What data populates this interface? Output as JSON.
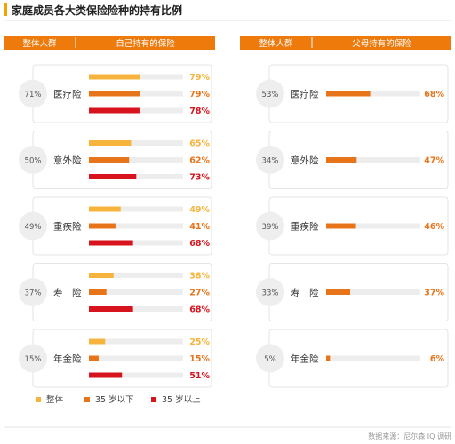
{
  "title": "家庭成员各大类保险险种的持有比例",
  "source": "数据来源：尼尔森 IQ 调研",
  "colors": {
    "accent": "#F5A200",
    "header": "#EE7A0C",
    "overall": "#F6B43C",
    "under35": "#E8741A",
    "over35": "#D7141E",
    "track": "#EDEDED",
    "panel_border": "#DDDDDD",
    "circle": "#EEEEEE"
  },
  "legend": [
    {
      "label": "整体",
      "color": "#F6B43C"
    },
    {
      "label": "35 岁以下",
      "color": "#E8741A"
    },
    {
      "label": "35 岁以上",
      "color": "#D7141E"
    }
  ],
  "chart_data": [
    {
      "type": "bar",
      "orientation": "horizontal",
      "header_left": "整体人群",
      "header_right": "自己持有的保险",
      "categories": [
        "医疗险",
        "意外险",
        "重疾险",
        "寿　险",
        "年金险"
      ],
      "overall_labels": [
        "71%",
        "50%",
        "49%",
        "37%",
        "15%"
      ],
      "series": [
        {
          "name": "整体",
          "values": [
            79,
            65,
            49,
            38,
            25
          ],
          "labels": [
            "79%",
            "65%",
            "49%",
            "38%",
            "25%"
          ]
        },
        {
          "name": "35 岁以下",
          "values": [
            79,
            62,
            41,
            27,
            15
          ],
          "labels": [
            "79%",
            "62%",
            "41%",
            "27%",
            "15%"
          ]
        },
        {
          "name": "35 岁以上",
          "values": [
            78,
            73,
            68,
            68,
            51
          ],
          "labels": [
            "78%",
            "73%",
            "68%",
            "68%",
            "51%"
          ]
        }
      ],
      "xlim": [
        0,
        100
      ]
    },
    {
      "type": "bar",
      "orientation": "horizontal",
      "header_left": "整体人群",
      "header_right": "父母持有的保险",
      "categories": [
        "医疗险",
        "意外险",
        "重疾险",
        "寿　险",
        "年金险"
      ],
      "overall_labels": [
        "53%",
        "34%",
        "39%",
        "33%",
        "5%"
      ],
      "series": [
        {
          "name": "",
          "values": [
            68,
            47,
            46,
            37,
            6
          ],
          "labels": [
            "68%",
            "47%",
            "46%",
            "37%",
            "6%"
          ]
        }
      ],
      "xlim": [
        0,
        100
      ]
    }
  ]
}
